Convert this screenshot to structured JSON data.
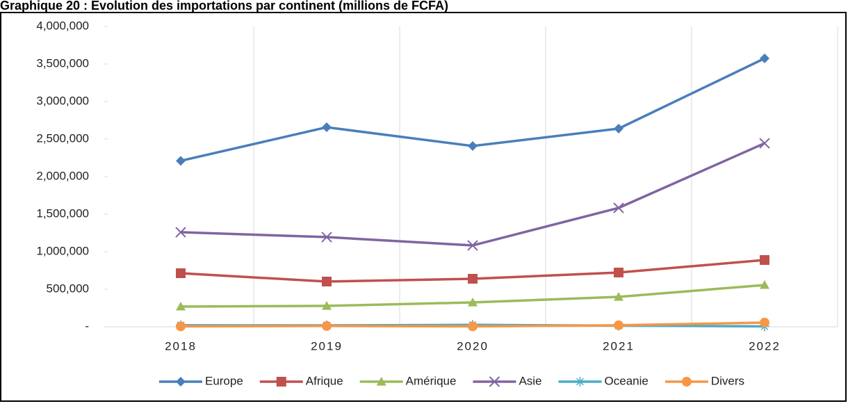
{
  "chart_data": {
    "type": "line",
    "title": "Graphique 20 : Evolution des importations par continent (millions de FCFA)",
    "categories": [
      "2018",
      "2019",
      "2020",
      "2021",
      "2022"
    ],
    "series": [
      {
        "name": "Europe",
        "color": "#4a7ebb",
        "marker": "diamond",
        "values": [
          2210000,
          2657000,
          2407000,
          2639000,
          3574000
        ]
      },
      {
        "name": "Afrique",
        "color": "#c0504d",
        "marker": "square",
        "values": [
          713000,
          602000,
          639000,
          722000,
          889000
        ]
      },
      {
        "name": "Amérique",
        "color": "#9bbb59",
        "marker": "triangle",
        "values": [
          269000,
          278000,
          324000,
          398000,
          556000
        ]
      },
      {
        "name": "Asie",
        "color": "#8064a2",
        "marker": "x",
        "values": [
          1259000,
          1194000,
          1083000,
          1583000,
          2444000
        ]
      },
      {
        "name": "Oceanie",
        "color": "#4bacc6",
        "marker": "star",
        "values": [
          20000,
          18000,
          25000,
          15000,
          5000
        ]
      },
      {
        "name": "Divers",
        "color": "#f79646",
        "marker": "circle",
        "values": [
          5000,
          10000,
          5000,
          20000,
          55000
        ]
      }
    ],
    "ylim": [
      0,
      4000000
    ],
    "yticks": [
      {
        "value": 0,
        "label": "-"
      },
      {
        "value": 500000,
        "label": "500,000"
      },
      {
        "value": 1000000,
        "label": "1,000,000"
      },
      {
        "value": 1500000,
        "label": "1,500,000"
      },
      {
        "value": 2000000,
        "label": "2,000,000"
      },
      {
        "value": 2500000,
        "label": "2,500,000"
      },
      {
        "value": 3000000,
        "label": "3,000,000"
      },
      {
        "value": 3500000,
        "label": "3,500,000"
      },
      {
        "value": 4000000,
        "label": "4,000,000"
      }
    ],
    "grid": "x",
    "legend": "bottom"
  }
}
